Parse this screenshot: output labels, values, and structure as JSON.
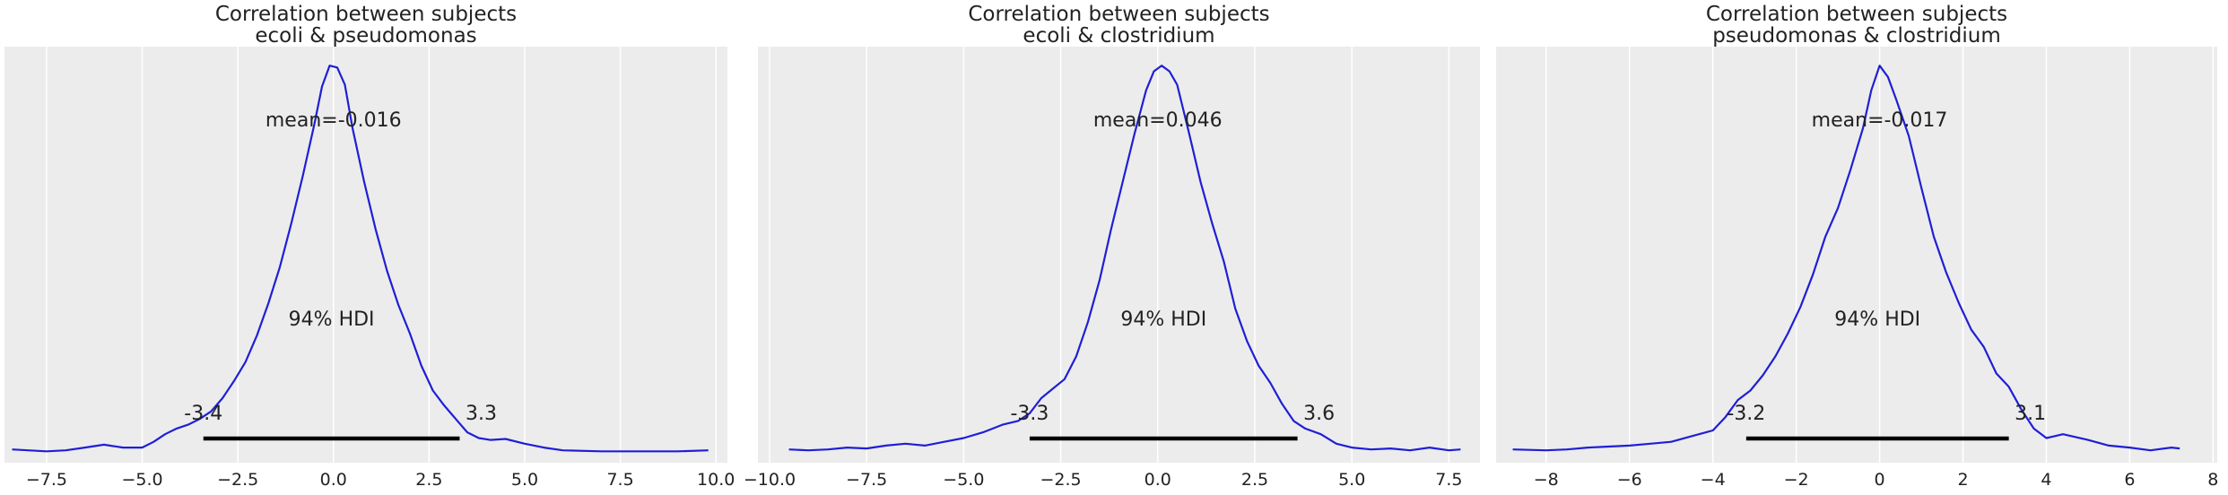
{
  "chart_data": [
    {
      "type": "line",
      "title": "Correlation between subjects",
      "subtitle": "ecoli & pseudomonas",
      "xlim": [
        -8.6,
        10.3
      ],
      "ylim": [
        -0.006,
        0.213
      ],
      "xticks": [
        -7.5,
        -5.0,
        -2.5,
        0.0,
        2.5,
        5.0,
        7.5,
        10.0
      ],
      "xtick_labels": [
        "−7.5",
        "−5.0",
        "−2.5",
        "0.0",
        "2.5",
        "5.0",
        "7.5",
        "10.0"
      ],
      "grid": true,
      "series_color": "#1f1fd6",
      "x": [
        -8.4,
        -7.5,
        -7.0,
        -6.5,
        -6.0,
        -5.5,
        -5.0,
        -4.7,
        -4.4,
        -4.1,
        -3.8,
        -3.5,
        -3.2,
        -2.9,
        -2.6,
        -2.3,
        -2.0,
        -1.7,
        -1.4,
        -1.1,
        -0.8,
        -0.5,
        -0.3,
        -0.1,
        0.1,
        0.3,
        0.5,
        0.8,
        1.1,
        1.4,
        1.7,
        2.0,
        2.3,
        2.6,
        2.9,
        3.2,
        3.5,
        3.8,
        4.1,
        4.5,
        5.0,
        5.5,
        6.0,
        7.0,
        8.0,
        9.0,
        9.8
      ],
      "y": [
        0.001,
        0.0,
        0.0005,
        0.002,
        0.0035,
        0.002,
        0.002,
        0.005,
        0.009,
        0.012,
        0.014,
        0.017,
        0.021,
        0.028,
        0.037,
        0.047,
        0.061,
        0.078,
        0.097,
        0.12,
        0.145,
        0.172,
        0.192,
        0.203,
        0.202,
        0.193,
        0.17,
        0.142,
        0.117,
        0.095,
        0.077,
        0.062,
        0.045,
        0.032,
        0.024,
        0.017,
        0.01,
        0.007,
        0.006,
        0.0065,
        0.004,
        0.002,
        0.0005,
        0.0,
        0.0,
        0.0,
        0.0005
      ],
      "mean_label": "mean=-0.016",
      "hdi_label": "94% HDI",
      "hdi": [
        -3.4,
        3.3
      ],
      "hdi_low_label": "-3.4",
      "hdi_high_label": "3.3"
    },
    {
      "type": "line",
      "title": "Correlation between subjects",
      "subtitle": "ecoli & clostridium",
      "xlim": [
        -10.3,
        8.3
      ],
      "ylim": [
        -0.006,
        0.213
      ],
      "xticks": [
        -10.0,
        -7.5,
        -5.0,
        -2.5,
        0.0,
        2.5,
        5.0,
        7.5
      ],
      "xtick_labels": [
        "−10.0",
        "−7.5",
        "−5.0",
        "−2.5",
        "0.0",
        "2.5",
        "5.0",
        "7.5"
      ],
      "grid": true,
      "series_color": "#1f1fd6",
      "x": [
        -9.5,
        -9.0,
        -8.5,
        -8.0,
        -7.5,
        -7.0,
        -6.5,
        -6.0,
        -5.5,
        -5.0,
        -4.5,
        -4.0,
        -3.6,
        -3.3,
        -3.0,
        -2.7,
        -2.4,
        -2.1,
        -1.8,
        -1.5,
        -1.2,
        -0.9,
        -0.6,
        -0.3,
        -0.1,
        0.1,
        0.3,
        0.5,
        0.8,
        1.1,
        1.4,
        1.7,
        2.0,
        2.3,
        2.6,
        2.9,
        3.2,
        3.5,
        3.8,
        4.2,
        4.6,
        5.0,
        5.5,
        6.0,
        6.5,
        7.0,
        7.5,
        7.8
      ],
      "y": [
        0.001,
        0.0005,
        0.001,
        0.002,
        0.0015,
        0.003,
        0.004,
        0.003,
        0.005,
        0.007,
        0.01,
        0.014,
        0.016,
        0.02,
        0.028,
        0.033,
        0.038,
        0.05,
        0.068,
        0.09,
        0.117,
        0.142,
        0.167,
        0.19,
        0.2,
        0.203,
        0.2,
        0.193,
        0.168,
        0.142,
        0.12,
        0.1,
        0.075,
        0.058,
        0.045,
        0.036,
        0.025,
        0.016,
        0.012,
        0.009,
        0.004,
        0.002,
        0.001,
        0.0015,
        0.0005,
        0.002,
        0.0005,
        0.001
      ],
      "mean_label": "mean=0.046",
      "hdi_label": "94% HDI",
      "hdi": [
        -3.3,
        3.6
      ],
      "hdi_low_label": "-3.3",
      "hdi_high_label": "3.6"
    },
    {
      "type": "line",
      "title": "Correlation between subjects",
      "subtitle": "pseudomonas & clostridium",
      "xlim": [
        -9.2,
        8.1
      ],
      "ylim": [
        -0.006,
        0.213
      ],
      "xticks": [
        -8,
        -6,
        -4,
        -2,
        0,
        2,
        4,
        6,
        8
      ],
      "xtick_labels": [
        "−8",
        "−6",
        "−4",
        "−2",
        "0",
        "2",
        "4",
        "6",
        "8"
      ],
      "grid": true,
      "series_color": "#1f1fd6",
      "x": [
        -8.8,
        -8.0,
        -7.5,
        -7.0,
        -6.5,
        -6.0,
        -5.5,
        -5.0,
        -4.5,
        -4.0,
        -3.7,
        -3.4,
        -3.1,
        -2.8,
        -2.5,
        -2.2,
        -1.9,
        -1.6,
        -1.3,
        -1.0,
        -0.7,
        -0.4,
        -0.2,
        0.0,
        0.2,
        0.4,
        0.7,
        1.0,
        1.3,
        1.6,
        1.9,
        2.2,
        2.5,
        2.8,
        3.1,
        3.4,
        3.7,
        4.0,
        4.4,
        5.0,
        5.5,
        6.0,
        6.5,
        7.0,
        7.2
      ],
      "y": [
        0.001,
        0.0005,
        0.001,
        0.002,
        0.0025,
        0.003,
        0.004,
        0.005,
        0.008,
        0.011,
        0.018,
        0.027,
        0.032,
        0.04,
        0.05,
        0.062,
        0.076,
        0.093,
        0.113,
        0.128,
        0.148,
        0.17,
        0.19,
        0.203,
        0.197,
        0.185,
        0.166,
        0.139,
        0.113,
        0.094,
        0.078,
        0.064,
        0.055,
        0.041,
        0.034,
        0.022,
        0.012,
        0.007,
        0.009,
        0.006,
        0.003,
        0.002,
        0.0005,
        0.002,
        0.0015
      ],
      "mean_label": "mean=-0.017",
      "hdi_label": "94% HDI",
      "hdi": [
        -3.2,
        3.1
      ],
      "hdi_low_label": "-3.2",
      "hdi_high_label": "3.1"
    }
  ]
}
